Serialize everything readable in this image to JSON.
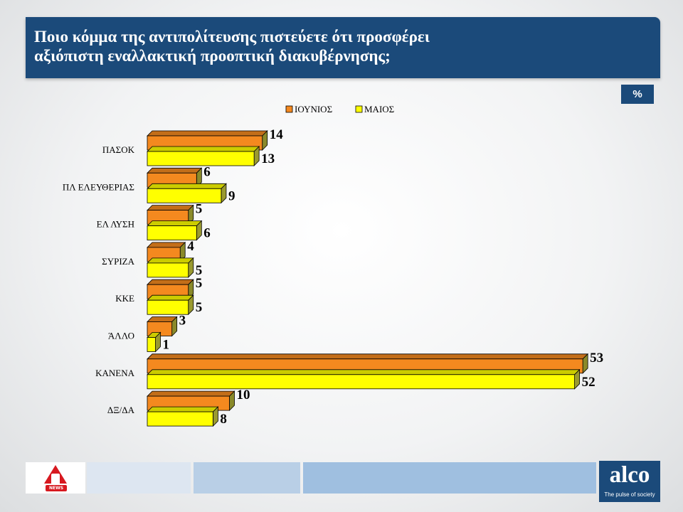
{
  "header": {
    "title_line1": "Ποιο κόμμα της αντιπολίτευσης πιστεύετε ότι προσφέρει",
    "title_line2": "αξιόπιστη εναλλακτική προοπτική διακυβέρνησης;"
  },
  "badge": "%",
  "colors": {
    "header_bg": "#1b4a7a",
    "series_june": "#f4891f",
    "series_may": "#ffff00"
  },
  "footer": {
    "left_logo_text": "NEWS",
    "brand": "alco",
    "tagline": "The pulse of society"
  },
  "chart_data": {
    "type": "bar",
    "orientation": "horizontal",
    "title": "",
    "xlabel": "",
    "ylabel": "",
    "categories": [
      "ΠΑΣΟΚ",
      "ΠΛ ΕΛΕΥΘΕΡΙΑΣ",
      "ΕΛ ΛΥΣΗ",
      "ΣΥΡΙΖΑ",
      "ΚΚΕ",
      "ΆΛΛΟ",
      "ΚΑΝΕΝΑ",
      "ΔΞ/ΔΑ"
    ],
    "series": [
      {
        "name": "ΙΟΥΝΙΟΣ",
        "values": [
          14,
          6,
          5,
          4,
          5,
          3,
          53,
          10
        ],
        "color": "#f4891f"
      },
      {
        "name": "ΜΑΙΟΣ",
        "values": [
          13,
          9,
          6,
          5,
          5,
          1,
          52,
          8
        ],
        "color": "#ffff00"
      }
    ],
    "xlim": [
      0,
      60
    ],
    "grid": false,
    "legend_position": "top"
  }
}
